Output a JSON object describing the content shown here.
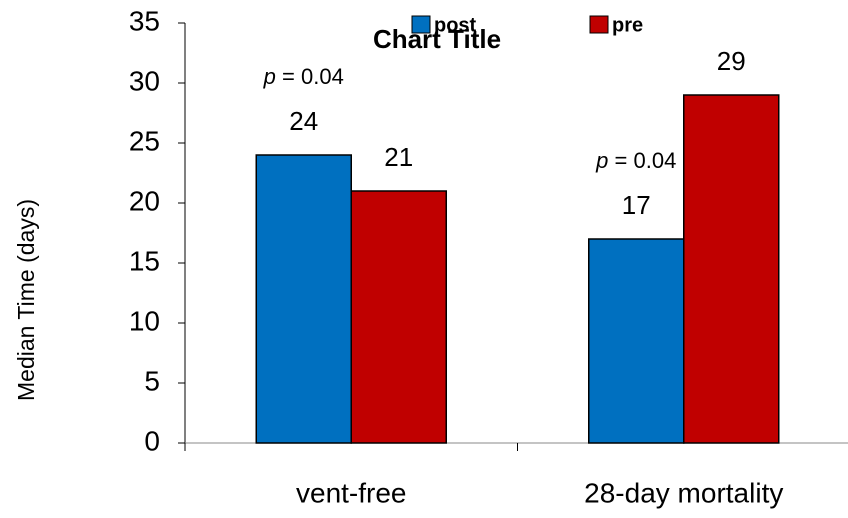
{
  "chart_data": {
    "type": "bar",
    "title": "Chart Title",
    "y_label": "Median Time (days)",
    "categories": [
      "vent-free",
      "28-day mortality"
    ],
    "series": [
      {
        "name": "post",
        "color": "#0070c0",
        "values": [
          24,
          17
        ]
      },
      {
        "name": "pre",
        "color": "#c00000",
        "values": [
          21,
          29
        ]
      }
    ],
    "ylim": [
      0,
      35
    ],
    "yticks": [
      0,
      5,
      10,
      15,
      20,
      25,
      30,
      35
    ],
    "grid": false,
    "legend": "top",
    "annotations": [
      {
        "symbol": "p",
        "text": "= 0.04",
        "category": 0
      },
      {
        "symbol": "p",
        "text": "= 0.04",
        "category": 1
      }
    ]
  }
}
